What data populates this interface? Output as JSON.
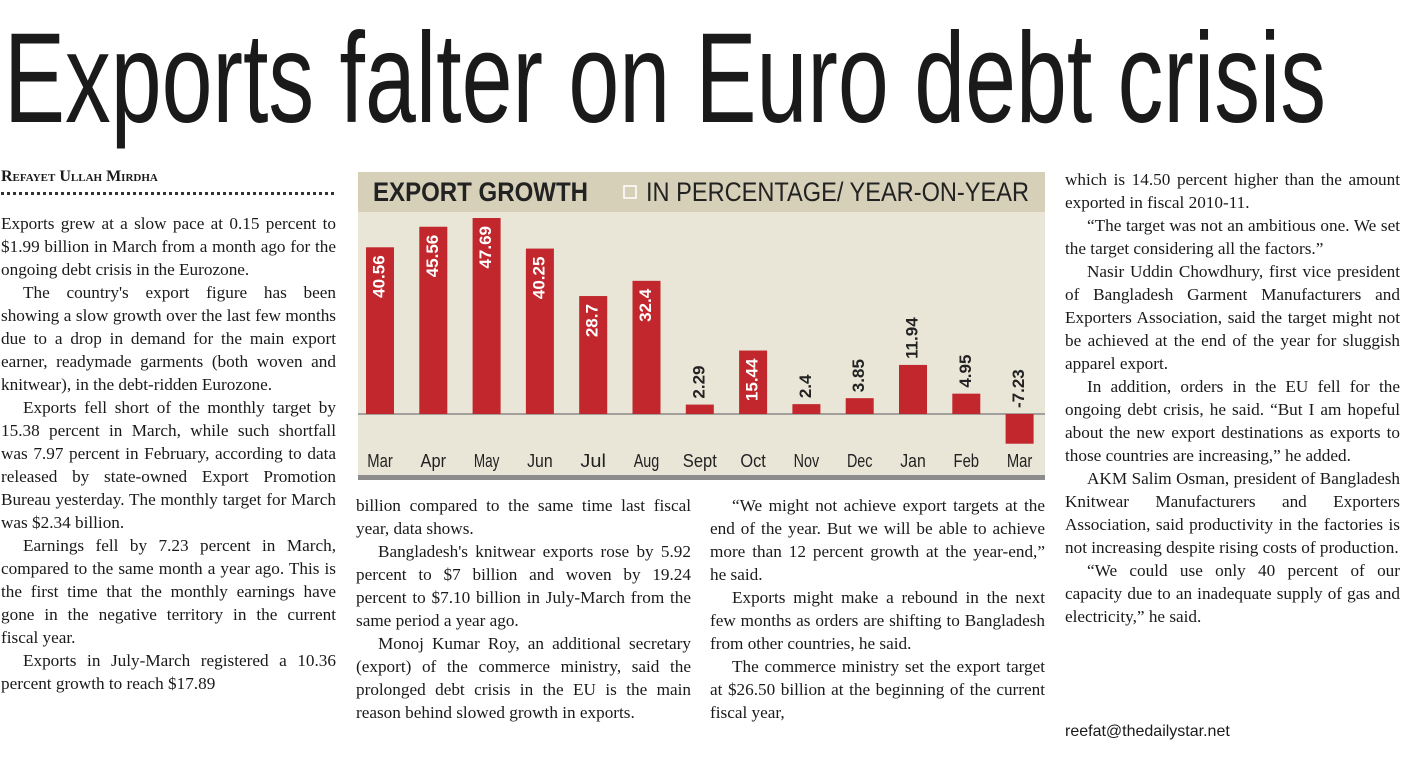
{
  "headline": "Exports falter on Euro debt crisis",
  "byline": "Refayet Ullah Mirdha",
  "columns": [
    [
      "Exports grew at a slow pace at 0.15 percent to $1.99 billion in March from a month ago for the ongoing debt crisis in the Eurozone.",
      "The country's export figure has been showing a slow growth over the last few months due to a drop in demand for the main export earner, readymade garments (both woven and knitwear), in the debt-ridden Eurozone.",
      "Exports fell short of the monthly target by 15.38 percent in March, while such shortfall was 7.97 percent in February, according to data released by state-owned Export Promotion Bureau yesterday. The monthly target for March was $2.34 billion.",
      "Earnings fell by 7.23 percent in March, compared to the same month a year ago. This is the first time that the monthly earnings have gone in the negative territory in the current fiscal year.",
      "Exports in July-March registered a 10.36 percent growth to reach $17.89"
    ],
    [
      "billion compared to the same time last fiscal year, data shows.",
      "Bangladesh's knitwear exports rose by 5.92 percent to $7 billion and woven by 19.24 percent to $7.10 billion in July-March from the same period a year ago.",
      "Monoj Kumar Roy, an additional secretary (export) of the commerce ministry, said the prolonged debt crisis in the EU is the main reason behind slowed growth in exports."
    ],
    [
      "“We might not achieve export targets at the end of the year. But we will be able to achieve more than 12 percent growth at the year-end,” he said.",
      "Exports might make a rebound in the next few months as orders are shifting to Bangladesh from other countries, he said.",
      "The commerce ministry set the export target at $26.50 billion at the beginning of the current fiscal year,"
    ],
    [
      "which is 14.50 percent higher than the amount exported in fiscal 2010-11.",
      "“The target was not an ambitious one. We set the target considering all the factors.”",
      "Nasir Uddin Chowdhury, first vice president of Bangladesh Garment Manufacturers and Exporters Association, said the target might not be achieved at the end of the year for sluggish apparel export.",
      "In addition, orders in the EU fell for the ongoing debt crisis, he said. “But I am hopeful about the new export destinations as exports to those countries are increasing,” he added.",
      "AKM Salim Osman, president of Bangladesh Knitwear Manufacturers and Exporters Association, said productivity in the factories is not increasing despite rising costs of production.",
      "“We could use only 40 percent of our capacity due to an inadequate supply of gas and electricity,” he said."
    ]
  ],
  "email": "reefat@thedailystar.net",
  "chart_data": {
    "type": "bar",
    "title": "EXPORT GROWTH",
    "subtitle": "IN PERCENTAGE/ YEAR-ON-YEAR",
    "categories": [
      "Mar",
      "Apr",
      "May",
      "Jun",
      "Jul",
      "Aug",
      "Sept",
      "Oct",
      "Nov",
      "Dec",
      "Jan",
      "Feb",
      "Mar"
    ],
    "values": [
      40.56,
      45.56,
      47.69,
      40.25,
      28.7,
      32.4,
      2.29,
      15.44,
      2.4,
      3.85,
      11.94,
      4.95,
      -7.23
    ],
    "color": "#c1272d"
  }
}
